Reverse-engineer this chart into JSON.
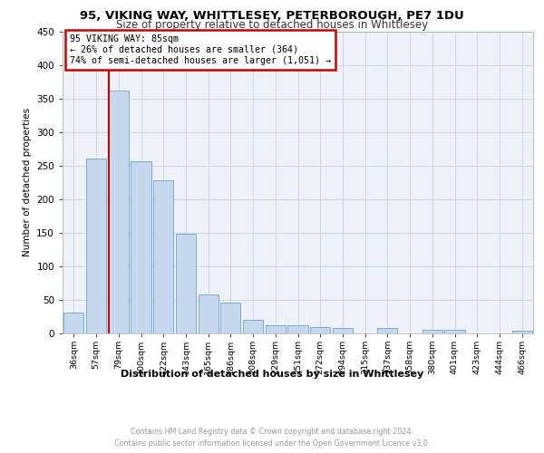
{
  "title1": "95, VIKING WAY, WHITTLESEY, PETERBOROUGH, PE7 1DU",
  "title2": "Size of property relative to detached houses in Whittlesey",
  "xlabel": "Distribution of detached houses by size in Whittlesey",
  "ylabel": "Number of detached properties",
  "categories": [
    "36sqm",
    "57sqm",
    "79sqm",
    "100sqm",
    "122sqm",
    "143sqm",
    "165sqm",
    "186sqm",
    "208sqm",
    "229sqm",
    "251sqm",
    "272sqm",
    "294sqm",
    "315sqm",
    "337sqm",
    "358sqm",
    "380sqm",
    "401sqm",
    "423sqm",
    "444sqm",
    "466sqm"
  ],
  "values": [
    30,
    260,
    362,
    257,
    228,
    148,
    57,
    45,
    19,
    12,
    12,
    9,
    7,
    0,
    7,
    0,
    5,
    5,
    0,
    0,
    4
  ],
  "bar_color": "#c5d8ed",
  "bar_edge_color": "#7aadd4",
  "red_line_bar_index": 2,
  "annotation_text": "95 VIKING WAY: 85sqm\n← 26% of detached houses are smaller (364)\n74% of semi-detached houses are larger (1,051) →",
  "annotation_box_color": "#ffffff",
  "annotation_box_edge": "#cc0000",
  "grid_color": "#d0d8e8",
  "background_color": "#eef2f8",
  "footer1": "Contains HM Land Registry data © Crown copyright and database right 2024.",
  "footer2": "Contains public sector information licensed under the Open Government Licence v3.0.",
  "ylim": [
    0,
    450
  ],
  "yticks": [
    0,
    50,
    100,
    150,
    200,
    250,
    300,
    350,
    400,
    450
  ]
}
